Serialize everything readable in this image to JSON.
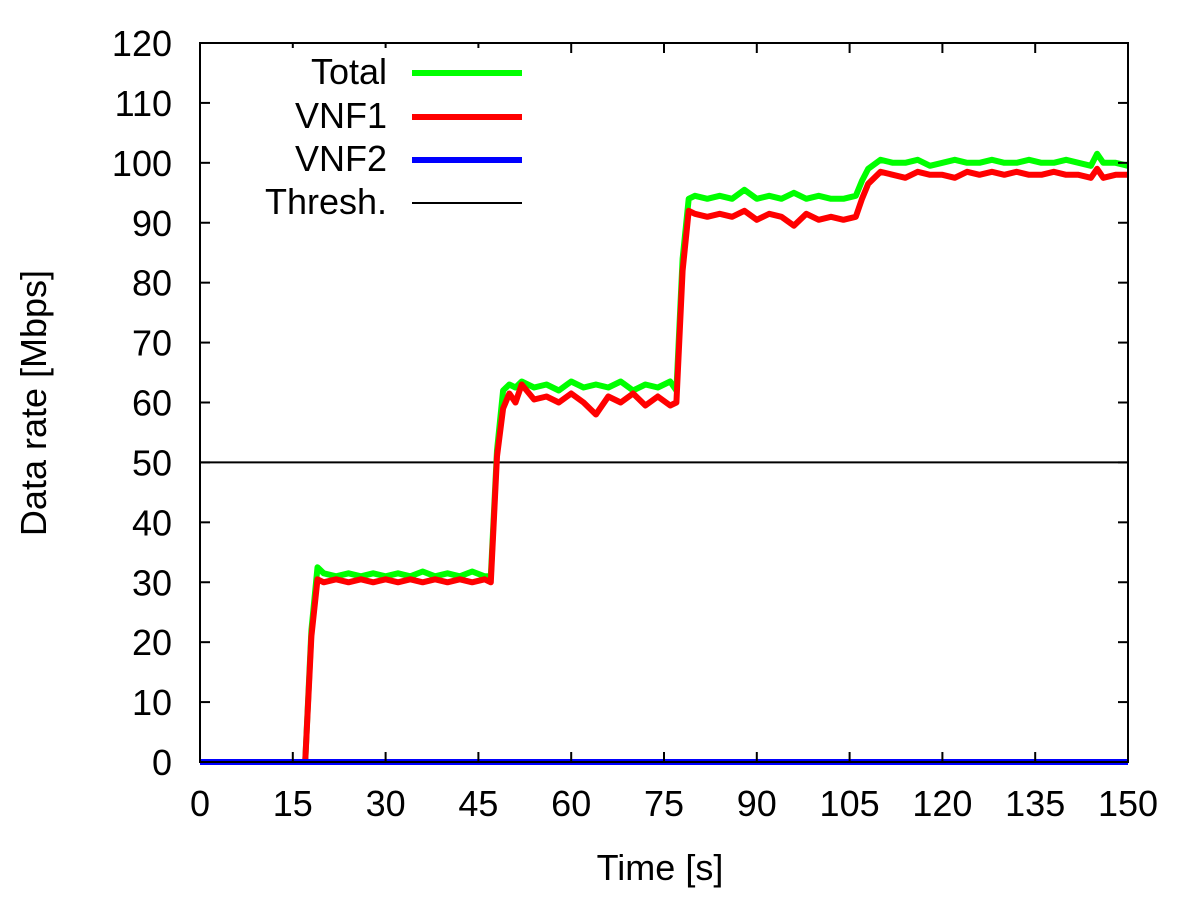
{
  "chart_data": {
    "type": "line",
    "xlabel": "Time [s]",
    "ylabel": "Data rate [Mbps]",
    "xlim": [
      0,
      150
    ],
    "ylim": [
      0,
      120
    ],
    "xticks": [
      0,
      15,
      30,
      45,
      60,
      75,
      90,
      105,
      120,
      135,
      150
    ],
    "yticks": [
      0,
      10,
      20,
      30,
      40,
      50,
      60,
      70,
      80,
      90,
      100,
      110,
      120
    ],
    "xtick_labels": [
      "0",
      "15",
      "30",
      "45",
      "60",
      "75",
      "90",
      "105",
      "120",
      "135",
      "150"
    ],
    "ytick_labels": [
      "0",
      "10",
      "20",
      "30",
      "40",
      "50",
      "60",
      "70",
      "80",
      "90",
      "100",
      "110",
      "120"
    ],
    "grid": false,
    "legend_position": "top-left",
    "series": [
      {
        "name": "Total",
        "color": "#00ff00",
        "x": [
          0,
          17,
          18,
          19,
          20,
          22,
          24,
          26,
          28,
          30,
          32,
          34,
          36,
          38,
          40,
          42,
          44,
          46,
          47,
          48,
          49,
          50,
          51,
          52,
          54,
          56,
          58,
          60,
          62,
          64,
          66,
          68,
          70,
          72,
          74,
          76,
          77,
          78,
          79,
          80,
          82,
          84,
          86,
          88,
          90,
          92,
          94,
          96,
          98,
          100,
          102,
          104,
          106,
          107,
          108,
          110,
          112,
          114,
          116,
          118,
          120,
          122,
          124,
          126,
          128,
          130,
          132,
          134,
          136,
          138,
          140,
          142,
          144,
          145,
          146,
          148,
          150
        ],
        "values": [
          0,
          0,
          22,
          32.5,
          31.5,
          31,
          31.5,
          31,
          31.5,
          31,
          31.5,
          31,
          31.8,
          31,
          31.5,
          31,
          31.8,
          31,
          31,
          52,
          62,
          63,
          62.5,
          63.5,
          62.5,
          63,
          62,
          63.5,
          62.5,
          63,
          62.5,
          63.5,
          62,
          63,
          62.5,
          63.5,
          62,
          84,
          94,
          94.5,
          94,
          94.5,
          94,
          95.5,
          94,
          94.5,
          94,
          95,
          94,
          94.5,
          94,
          94,
          94.5,
          97,
          99,
          100.5,
          100,
          100,
          100.5,
          99.5,
          100,
          100.5,
          100,
          100,
          100.5,
          100,
          100,
          100.5,
          100,
          100,
          100.5,
          100,
          99.5,
          101.5,
          100,
          100,
          99.5
        ]
      },
      {
        "name": "VNF1",
        "color": "#ff0000",
        "x": [
          0,
          17,
          18,
          19,
          20,
          22,
          24,
          26,
          28,
          30,
          32,
          34,
          36,
          38,
          40,
          42,
          44,
          46,
          47,
          48,
          49,
          50,
          51,
          52,
          54,
          56,
          58,
          60,
          62,
          64,
          66,
          68,
          70,
          72,
          74,
          76,
          77,
          78,
          79,
          80,
          82,
          84,
          86,
          88,
          90,
          92,
          94,
          96,
          98,
          100,
          102,
          104,
          106,
          107,
          108,
          110,
          112,
          114,
          116,
          118,
          120,
          122,
          124,
          126,
          128,
          130,
          132,
          134,
          136,
          138,
          140,
          142,
          144,
          145,
          146,
          148,
          150
        ],
        "values": [
          0,
          0,
          21,
          30.5,
          30,
          30.5,
          30,
          30.5,
          30,
          30.5,
          30,
          30.5,
          30,
          30.5,
          30,
          30.5,
          30,
          30.5,
          30,
          51,
          59,
          61.5,
          60,
          63,
          60.5,
          61,
          60,
          61.5,
          60,
          58,
          61,
          60,
          61.5,
          59.5,
          61,
          59.5,
          60,
          82,
          92,
          91.5,
          91,
          91.5,
          91,
          92,
          90.5,
          91.5,
          91,
          89.5,
          91.5,
          90.5,
          91,
          90.5,
          91,
          94,
          96.5,
          98.5,
          98,
          97.5,
          98.5,
          98,
          98,
          97.5,
          98.5,
          98,
          98.5,
          98,
          98.5,
          98,
          98,
          98.5,
          98,
          98,
          97.5,
          99,
          97.5,
          98,
          98
        ]
      },
      {
        "name": "VNF2",
        "color": "#0000ff",
        "x": [
          0,
          150
        ],
        "values": [
          0,
          0
        ]
      },
      {
        "name": "Thresh.",
        "color": "#000000",
        "x": [
          0,
          150
        ],
        "values": [
          50,
          50
        ]
      }
    ]
  }
}
